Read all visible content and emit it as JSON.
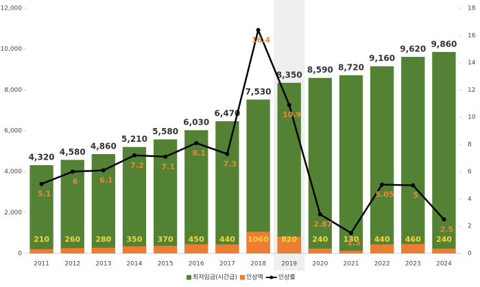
{
  "chart_data": {
    "type": "bar-line",
    "categories": [
      "2011",
      "2012",
      "2013",
      "2014",
      "2015",
      "2016",
      "2017",
      "2018",
      "2019",
      "2020",
      "2021",
      "2022",
      "2023",
      "2024"
    ],
    "series": [
      {
        "name": "최저임금(시간급)",
        "color": "#548235",
        "values": [
          4320,
          4580,
          4860,
          5210,
          5580,
          6030,
          6470,
          7530,
          8350,
          8590,
          8720,
          9160,
          9620,
          9860
        ],
        "value_labels": [
          "4,320",
          "4,580",
          "4,860",
          "5,210",
          "5,580",
          "6,030",
          "6,470",
          "7,530",
          "8,350",
          "8,590",
          "8,720",
          "9,160",
          "9,620",
          "9,860"
        ]
      },
      {
        "name": "인상액",
        "color": "#ed7d31",
        "values": [
          210,
          260,
          280,
          350,
          370,
          450,
          440,
          1060,
          820,
          240,
          130,
          440,
          460,
          240
        ]
      },
      {
        "name": "인상률",
        "color": "#000000",
        "axis": "y2",
        "type": "line",
        "values": [
          5.1,
          6,
          6.1,
          7.2,
          7.1,
          8.1,
          7.3,
          16.4,
          10.9,
          2.87,
          1.5,
          5.05,
          5,
          2.5
        ]
      }
    ],
    "ylim": [
      0,
      12000
    ],
    "yticks": [
      0,
      {
        "value": 2000,
        "label": "2,000"
      },
      {
        "value": 4000,
        "label": "4,000"
      },
      {
        "value": 6000,
        "label": "6,000"
      },
      {
        "value": 8000,
        "label": "8,000"
      },
      {
        "value": 10000,
        "label": "10,000"
      },
      {
        "value": 12000,
        "label": "12,000"
      }
    ],
    "y2lim": [
      0,
      18
    ],
    "y2ticks": [
      0,
      2,
      4,
      6,
      8,
      10,
      12,
      14,
      16,
      18
    ],
    "highlight_index": 8,
    "grid": false,
    "legend": "bottom"
  }
}
